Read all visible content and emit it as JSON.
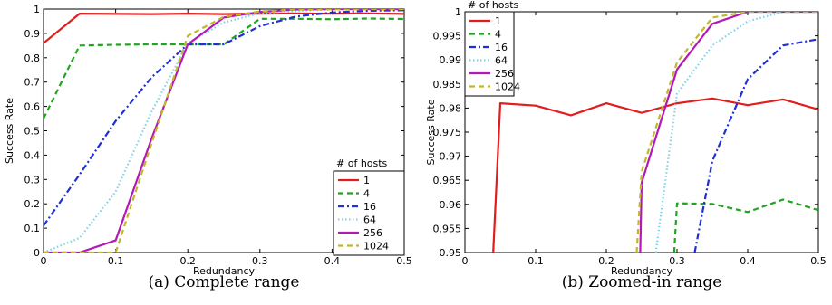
{
  "chart_data": [
    {
      "type": "line",
      "caption": "(a) Complete range",
      "xlabel": "Redundancy",
      "ylabel": "Success Rate",
      "xlim": [
        0,
        0.5
      ],
      "ylim": [
        0,
        1
      ],
      "xticks": [
        "0",
        "0.1",
        "0.2",
        "0.3",
        "0.4",
        "0.5"
      ],
      "yticks": [
        "0",
        "0.1",
        "0.2",
        "0.3",
        "0.4",
        "0.5",
        "0.6",
        "0.7",
        "0.8",
        "0.9",
        "1"
      ],
      "grid": false,
      "legend": {
        "title": "# of hosts",
        "placement": "bottom-right"
      },
      "series": [
        {
          "name": "1",
          "color": "#e11d1d",
          "dash": "solid",
          "x": [
            0,
            0.05,
            0.1,
            0.15,
            0.2,
            0.25,
            0.3,
            0.35,
            0.4,
            0.45,
            0.5
          ],
          "y": [
            0.86,
            0.981,
            0.98,
            0.979,
            0.981,
            0.979,
            0.981,
            0.982,
            0.981,
            0.982,
            0.98
          ]
        },
        {
          "name": "4",
          "color": "#1fa51f",
          "dash": "dashed",
          "x": [
            0,
            0.05,
            0.1,
            0.15,
            0.2,
            0.25,
            0.3,
            0.35,
            0.4,
            0.45,
            0.5
          ],
          "y": [
            0.55,
            0.85,
            0.853,
            0.855,
            0.855,
            0.855,
            0.96,
            0.96,
            0.958,
            0.961,
            0.959
          ]
        },
        {
          "name": "16",
          "color": "#1f2fd6",
          "dash": "dashdot",
          "x": [
            0,
            0.05,
            0.1,
            0.15,
            0.2,
            0.25,
            0.3,
            0.35,
            0.4,
            0.45,
            0.5
          ],
          "y": [
            0.11,
            0.32,
            0.54,
            0.72,
            0.855,
            0.855,
            0.93,
            0.969,
            0.986,
            0.993,
            0.995
          ]
        },
        {
          "name": "64",
          "color": "#7fd3e6",
          "dash": "dotted",
          "x": [
            0,
            0.05,
            0.1,
            0.15,
            0.2,
            0.25,
            0.3,
            0.35,
            0.4,
            0.45,
            0.5
          ],
          "y": [
            0.0,
            0.06,
            0.25,
            0.58,
            0.86,
            0.945,
            0.983,
            0.993,
            0.998,
            1.0,
            1.0
          ]
        },
        {
          "name": "256",
          "color": "#b318b8",
          "dash": "solid",
          "x": [
            0,
            0.05,
            0.1,
            0.15,
            0.2,
            0.25,
            0.3,
            0.35,
            0.4,
            0.45,
            0.5
          ],
          "y": [
            0.0,
            0.0,
            0.05,
            0.47,
            0.855,
            0.965,
            0.988,
            0.998,
            1.0,
            1.0,
            1.0
          ]
        },
        {
          "name": "1024",
          "color": "#c2b62a",
          "dash": "dashed",
          "x": [
            0,
            0.05,
            0.1,
            0.15,
            0.2,
            0.25,
            0.3,
            0.35,
            0.4,
            0.45,
            0.5
          ],
          "y": [
            0.0,
            0.0,
            0.0,
            0.45,
            0.89,
            0.968,
            0.99,
            0.999,
            1.0,
            1.0,
            1.0
          ]
        }
      ]
    },
    {
      "type": "line",
      "caption": "(b) Zoomed-in range",
      "xlabel": "Redundancy",
      "ylabel": "Success Rate",
      "xlim": [
        0,
        0.5
      ],
      "ylim": [
        0.95,
        1
      ],
      "xticks": [
        "0",
        "0.1",
        "0.2",
        "0.3",
        "0.4",
        "0.5"
      ],
      "yticks": [
        "0.95",
        "0.955",
        "0.96",
        "0.965",
        "0.97",
        "0.975",
        "0.98",
        "0.985",
        "0.99",
        "0.995",
        "1"
      ],
      "grid": false,
      "legend": {
        "title": "# of hosts",
        "placement": "top-left"
      },
      "series": [
        {
          "name": "1",
          "color": "#e11d1d",
          "dash": "solid",
          "x": [
            0.04,
            0.05,
            0.1,
            0.15,
            0.2,
            0.25,
            0.3,
            0.35,
            0.4,
            0.45,
            0.5
          ],
          "y": [
            0.95,
            0.981,
            0.9805,
            0.9785,
            0.981,
            0.979,
            0.981,
            0.982,
            0.9806,
            0.9818,
            0.9797
          ]
        },
        {
          "name": "4",
          "color": "#1fa51f",
          "dash": "dashed",
          "x": [
            0.296,
            0.3,
            0.35,
            0.4,
            0.45,
            0.5
          ],
          "y": [
            0.95,
            0.9602,
            0.9601,
            0.9584,
            0.961,
            0.9588
          ]
        },
        {
          "name": "16",
          "color": "#1f2fd6",
          "dash": "dashdot",
          "x": [
            0.325,
            0.35,
            0.4,
            0.45,
            0.5
          ],
          "y": [
            0.95,
            0.969,
            0.986,
            0.993,
            0.9943
          ]
        },
        {
          "name": "64",
          "color": "#7fd3e6",
          "dash": "dotted",
          "x": [
            0.27,
            0.3,
            0.35,
            0.4,
            0.45,
            0.5
          ],
          "y": [
            0.95,
            0.983,
            0.993,
            0.998,
            1.0,
            1.0
          ]
        },
        {
          "name": "256",
          "color": "#b318b8",
          "dash": "solid",
          "x": [
            0.248,
            0.25,
            0.3,
            0.35,
            0.4,
            0.45,
            0.5
          ],
          "y": [
            0.95,
            0.9645,
            0.988,
            0.9975,
            1.0,
            1.0,
            1.0
          ]
        },
        {
          "name": "1024",
          "color": "#c2b62a",
          "dash": "dashed",
          "x": [
            0.243,
            0.25,
            0.3,
            0.35,
            0.4,
            0.45,
            0.5
          ],
          "y": [
            0.95,
            0.9668,
            0.9895,
            0.9988,
            1.0,
            1.0,
            1.0
          ]
        }
      ]
    }
  ]
}
